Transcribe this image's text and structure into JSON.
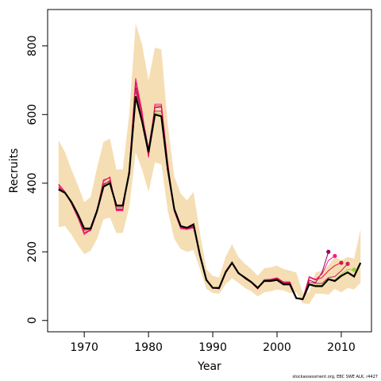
{
  "chart_data": {
    "type": "line",
    "title": "",
    "xlabel": "Year",
    "ylabel": "Recruits",
    "xlim": [
      1964.3,
      2014.7
    ],
    "ylim": [
      -33,
      906
    ],
    "x_ticks": [
      1970,
      1980,
      1990,
      2000,
      2010
    ],
    "y_ticks": [
      0,
      200,
      400,
      600,
      800
    ],
    "grid": false,
    "legend": "none",
    "footnote": "stockassessment.org, EBC SWE ALK, r4427",
    "colors": {
      "band": "#f5deb3",
      "main": "#000000",
      "peel_1": "#9b0060",
      "peel_2": "#ff1493",
      "peel_3": "#dc143c",
      "peel_4": "#d01f5a",
      "peel_5": "#9acd32",
      "peel_6": "#8b008b"
    },
    "x": [
      1966,
      1967,
      1968,
      1969,
      1970,
      1971,
      1972,
      1973,
      1974,
      1975,
      1976,
      1977,
      1978,
      1979,
      1980,
      1981,
      1982,
      1983,
      1984,
      1985,
      1986,
      1987,
      1988,
      1989,
      1990,
      1991,
      1992,
      1993,
      1994,
      1995,
      1996,
      1997,
      1998,
      1999,
      2000,
      2001,
      2002,
      2003,
      2004,
      2005,
      2006,
      2007,
      2008,
      2009,
      2010,
      2011,
      2012,
      2013
    ],
    "ci_lower": [
      272,
      275,
      250,
      220,
      193,
      203,
      238,
      295,
      300,
      255,
      255,
      330,
      490,
      440,
      375,
      460,
      455,
      320,
      238,
      208,
      200,
      205,
      150,
      92,
      80,
      78,
      105,
      123,
      110,
      95,
      85,
      70,
      82,
      85,
      90,
      88,
      80,
      82,
      50,
      48,
      78,
      78,
      75,
      92,
      82,
      95,
      90,
      110
    ],
    "ci_upper": [
      525,
      490,
      440,
      395,
      345,
      360,
      445,
      520,
      530,
      440,
      440,
      600,
      865,
      805,
      700,
      795,
      790,
      570,
      420,
      370,
      350,
      375,
      255,
      150,
      130,
      125,
      185,
      222,
      185,
      165,
      150,
      130,
      152,
      155,
      160,
      150,
      145,
      140,
      80,
      82,
      140,
      145,
      160,
      185,
      175,
      185,
      180,
      265
    ],
    "series": [
      {
        "role": "estimate",
        "x": [
          1966,
          1967,
          1968,
          1969,
          1970,
          1971,
          1972,
          1973,
          1974,
          1975,
          1976,
          1977,
          1978,
          1979,
          1980,
          1981,
          1982,
          1983,
          1984,
          1985,
          1986,
          1987,
          1988,
          1989,
          1990,
          1991,
          1992,
          1993,
          1994,
          1995,
          1996,
          1997,
          1998,
          1999,
          2000,
          2001,
          2002,
          2003,
          2004,
          2005,
          2006,
          2007,
          2008,
          2009,
          2010,
          2011,
          2012,
          2013
        ],
        "values": [
          382,
          372,
          345,
          310,
          268,
          268,
          320,
          390,
          400,
          335,
          335,
          430,
          653,
          580,
          490,
          600,
          595,
          440,
          325,
          275,
          270,
          280,
          190,
          118,
          95,
          95,
          140,
          168,
          138,
          125,
          112,
          95,
          115,
          115,
          118,
          105,
          105,
          65,
          62,
          105,
          100,
          100,
          120,
          115,
          130,
          140,
          128,
          168
        ]
      },
      {
        "role": "retro",
        "x": [
          1966,
          1967,
          1968,
          1969,
          1970,
          1971,
          1972,
          1973,
          1974,
          1975,
          1976,
          1977,
          1978,
          1979,
          1980,
          1981,
          1982,
          1983,
          1984,
          1985,
          1986,
          1987,
          1988,
          1989,
          1990,
          1991,
          1992,
          1993,
          1994,
          1995,
          1996,
          1997,
          1998,
          1999,
          2000,
          2001,
          2002,
          2003,
          2004,
          2005,
          2006,
          2007,
          2008
        ],
        "values": [
          397,
          375,
          340,
          300,
          255,
          262,
          315,
          395,
          408,
          325,
          325,
          438,
          680,
          600,
          500,
          620,
          622,
          450,
          320,
          270,
          268,
          272,
          195,
          120,
          95,
          92,
          142,
          170,
          140,
          122,
          110,
          92,
          118,
          118,
          122,
          110,
          110,
          65,
          60,
          118,
          110,
          140,
          200
        ]
      },
      {
        "role": "retro",
        "x": [
          1966,
          1967,
          1968,
          1969,
          1970,
          1971,
          1972,
          1973,
          1974,
          1975,
          1976,
          1977,
          1978,
          1979,
          1980,
          1981,
          1982,
          1983,
          1984,
          1985,
          1986,
          1987,
          1988,
          1989,
          1990,
          1991,
          1992,
          1993,
          1994,
          1995,
          1996,
          1997,
          1998,
          1999,
          2000,
          2001,
          2002,
          2003,
          2004,
          2005,
          2006,
          2007,
          2008,
          2009
        ],
        "values": [
          395,
          374,
          342,
          302,
          250,
          264,
          318,
          405,
          418,
          320,
          320,
          440,
          706,
          610,
          475,
          630,
          630,
          460,
          318,
          268,
          265,
          270,
          192,
          118,
          96,
          93,
          144,
          170,
          140,
          124,
          110,
          92,
          119,
          120,
          124,
          112,
          112,
          66,
          62,
          128,
          120,
          135,
          175,
          188
        ]
      },
      {
        "role": "retro",
        "x": [
          1966,
          1967,
          1968,
          1969,
          1970,
          1971,
          1972,
          1973,
          1974,
          1975,
          1976,
          1977,
          1978,
          1979,
          1980,
          1981,
          1982,
          1983,
          1984,
          1985,
          1986,
          1987,
          1988,
          1989,
          1990,
          1991,
          1992,
          1993,
          1994,
          1995,
          1996,
          1997,
          1998,
          1999,
          2000,
          2001,
          2002,
          2003,
          2004,
          2005,
          2006,
          2007,
          2008,
          2009,
          2010
        ],
        "values": [
          390,
          372,
          342,
          304,
          255,
          265,
          322,
          410,
          415,
          322,
          322,
          438,
          695,
          600,
          480,
          625,
          625,
          455,
          320,
          270,
          268,
          275,
          193,
          118,
          96,
          94,
          143,
          169,
          140,
          124,
          111,
          93,
          118,
          119,
          124,
          112,
          112,
          66,
          62,
          125,
          118,
          125,
          145,
          160,
          168
        ]
      },
      {
        "role": "retro",
        "x": [
          1966,
          1967,
          1968,
          1969,
          1970,
          1971,
          1972,
          1973,
          1974,
          1975,
          1976,
          1977,
          1978,
          1979,
          1980,
          1981,
          1982,
          1983,
          1984,
          1985,
          1986,
          1987,
          1988,
          1989,
          1990,
          1991,
          1992,
          1993,
          1994,
          1995,
          1996,
          1997,
          1998,
          1999,
          2000,
          2001,
          2002,
          2003,
          2004,
          2005,
          2006,
          2007,
          2008,
          2009,
          2010,
          2011
        ],
        "values": [
          386,
          372,
          344,
          306,
          262,
          266,
          320,
          398,
          405,
          330,
          330,
          434,
          668,
          590,
          490,
          610,
          610,
          448,
          322,
          272,
          270,
          278,
          191,
          118,
          95,
          95,
          141,
          168,
          139,
          125,
          112,
          94,
          117,
          117,
          120,
          108,
          108,
          65,
          62,
          112,
          108,
          108,
          125,
          128,
          145,
          165
        ]
      },
      {
        "role": "retro",
        "x": [
          1966,
          1967,
          1968,
          1969,
          1970,
          1971,
          1972,
          1973,
          1974,
          1975,
          1976,
          1977,
          1978,
          1979,
          1980,
          1981,
          1982,
          1983,
          1984,
          1985,
          1986,
          1987,
          1988,
          1989,
          1990,
          1991,
          1992,
          1993,
          1994,
          1995,
          1996,
          1997,
          1998,
          1999,
          2000,
          2001,
          2002,
          2003,
          2004,
          2005,
          2006,
          2007,
          2008,
          2009,
          2010,
          2011,
          2012
        ],
        "values": [
          384,
          372,
          345,
          308,
          265,
          267,
          320,
          393,
          402,
          333,
          333,
          432,
          660,
          585,
          490,
          605,
          602,
          444,
          324,
          274,
          270,
          280,
          190,
          118,
          95,
          95,
          140,
          168,
          138,
          125,
          112,
          95,
          116,
          116,
          119,
          106,
          106,
          65,
          62,
          108,
          103,
          103,
          122,
          118,
          135,
          148,
          148
        ]
      }
    ]
  }
}
